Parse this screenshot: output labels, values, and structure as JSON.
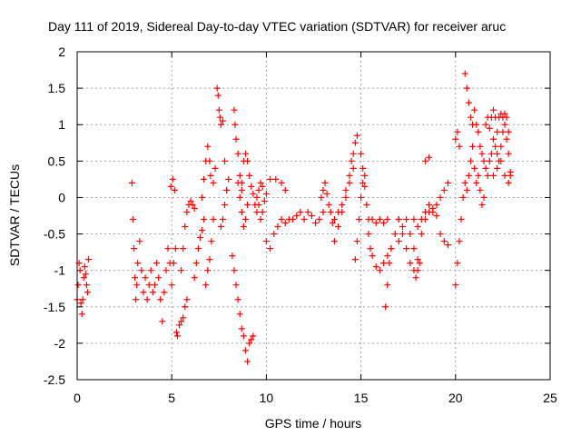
{
  "chart_data": {
    "type": "scatter",
    "title": "Day 111 of 2019, Sidereal Day-to-day VTEC variation (SDTVAR) for receiver aruc",
    "xlabel": "GPS time / hours",
    "ylabel": "SDTVAR / TECUs",
    "xlim": [
      0,
      25
    ],
    "ylim": [
      -2.5,
      2
    ],
    "xticks": [
      0,
      5,
      10,
      15,
      20,
      25
    ],
    "xtick_labels": [
      "0",
      "5",
      "10",
      "15",
      "20",
      "25"
    ],
    "yticks": [
      -2.5,
      -2,
      -1.5,
      -1,
      -0.5,
      0,
      0.5,
      1,
      1.5,
      2
    ],
    "ytick_labels": [
      "-2.5",
      "-2",
      "-1.5",
      "-1",
      "-0.5",
      "0",
      "0.5",
      "1",
      "1.5",
      "2"
    ],
    "grid": true,
    "marker": "+",
    "series": [
      {
        "name": "SDTVAR",
        "color": "#ff0000",
        "points": [
          [
            0.0,
            -1.4
          ],
          [
            0.05,
            -1.2
          ],
          [
            0.1,
            -0.9
          ],
          [
            0.15,
            -1.0
          ],
          [
            0.2,
            -1.45
          ],
          [
            0.25,
            -1.6
          ],
          [
            0.3,
            -1.4
          ],
          [
            0.35,
            -1.1
          ],
          [
            0.4,
            -0.95
          ],
          [
            0.45,
            -1.05
          ],
          [
            0.5,
            -1.2
          ],
          [
            0.55,
            -1.3
          ],
          [
            0.6,
            -0.85
          ],
          [
            2.9,
            0.2
          ],
          [
            2.95,
            -0.3
          ],
          [
            3.0,
            -0.7
          ],
          [
            3.05,
            -1.1
          ],
          [
            3.1,
            -1.4
          ],
          [
            3.15,
            -1.2
          ],
          [
            3.2,
            -0.9
          ],
          [
            3.3,
            -0.6
          ],
          [
            3.4,
            -1.0
          ],
          [
            3.5,
            -1.3
          ],
          [
            3.6,
            -1.1
          ],
          [
            3.7,
            -1.4
          ],
          [
            3.8,
            -1.2
          ],
          [
            3.9,
            -1.0
          ],
          [
            4.0,
            -1.3
          ],
          [
            4.1,
            -1.2
          ],
          [
            4.2,
            -0.9
          ],
          [
            4.3,
            -1.1
          ],
          [
            4.4,
            -1.4
          ],
          [
            4.5,
            -1.7
          ],
          [
            4.6,
            -1.3
          ],
          [
            4.7,
            -1.0
          ],
          [
            4.8,
            -0.7
          ],
          [
            4.9,
            -0.9
          ],
          [
            5.0,
            -1.2
          ],
          [
            5.1,
            -0.9
          ],
          [
            5.2,
            -0.7
          ],
          [
            4.95,
            0.15
          ],
          [
            5.05,
            0.25
          ],
          [
            5.15,
            0.1
          ],
          [
            5.25,
            -1.85
          ],
          [
            5.3,
            -1.9
          ],
          [
            5.4,
            -1.75
          ],
          [
            5.5,
            -1.7
          ],
          [
            5.6,
            -1.65
          ],
          [
            5.7,
            -1.5
          ],
          [
            5.8,
            -1.4
          ],
          [
            5.5,
            -1.0
          ],
          [
            5.6,
            -0.7
          ],
          [
            5.7,
            -0.4
          ],
          [
            5.8,
            -0.2
          ],
          [
            5.9,
            -0.1
          ],
          [
            6.0,
            -0.05
          ],
          [
            6.1,
            -0.1
          ],
          [
            6.2,
            -0.15
          ],
          [
            6.2,
            -1.1
          ],
          [
            6.3,
            -0.9
          ],
          [
            6.4,
            -0.7
          ],
          [
            6.5,
            -0.55
          ],
          [
            6.6,
            -0.45
          ],
          [
            6.7,
            -0.3
          ],
          [
            6.6,
            0.0
          ],
          [
            6.7,
            0.25
          ],
          [
            6.8,
            0.5
          ],
          [
            6.9,
            0.7
          ],
          [
            7.0,
            0.5
          ],
          [
            7.05,
            0.3
          ],
          [
            6.8,
            -1.2
          ],
          [
            6.9,
            -1.0
          ],
          [
            7.0,
            -0.85
          ],
          [
            7.1,
            -0.6
          ],
          [
            7.2,
            -0.3
          ],
          [
            7.2,
            0.2
          ],
          [
            7.3,
            0.4
          ],
          [
            7.4,
            1.5
          ],
          [
            7.45,
            1.4
          ],
          [
            7.5,
            1.2
          ],
          [
            7.55,
            1.1
          ],
          [
            7.6,
            1.0
          ],
          [
            7.7,
            1.05
          ],
          [
            7.8,
            0.5
          ],
          [
            7.9,
            0.1
          ],
          [
            7.6,
            -0.4
          ],
          [
            7.7,
            -0.3
          ],
          [
            7.8,
            -0.1
          ],
          [
            7.9,
            0.1
          ],
          [
            8.0,
            0.25
          ],
          [
            8.3,
            1.2
          ],
          [
            8.35,
            1.0
          ],
          [
            8.4,
            0.8
          ],
          [
            8.5,
            0.6
          ],
          [
            8.6,
            0.3
          ],
          [
            8.7,
            0.1
          ],
          [
            8.2,
            -0.8
          ],
          [
            8.3,
            -1.0
          ],
          [
            8.4,
            -1.2
          ],
          [
            8.5,
            -1.4
          ],
          [
            8.6,
            -1.6
          ],
          [
            8.7,
            -1.8
          ],
          [
            8.8,
            -1.9
          ],
          [
            8.9,
            -2.1
          ],
          [
            9.0,
            -2.25
          ],
          [
            9.1,
            -2.0
          ],
          [
            9.2,
            -1.95
          ],
          [
            9.3,
            -1.9
          ],
          [
            8.5,
            0.2
          ],
          [
            8.6,
            0.0
          ],
          [
            8.7,
            -0.2
          ],
          [
            8.8,
            -0.4
          ],
          [
            8.9,
            -0.3
          ],
          [
            9.0,
            -0.1
          ],
          [
            8.7,
            0.2
          ],
          [
            8.8,
            0.5
          ],
          [
            8.9,
            0.6
          ],
          [
            9.0,
            0.5
          ],
          [
            9.1,
            0.3
          ],
          [
            9.2,
            0.15
          ],
          [
            9.3,
            0.05
          ],
          [
            9.4,
            -0.1
          ],
          [
            9.5,
            -0.2
          ],
          [
            9.6,
            -0.1
          ],
          [
            9.7,
            -0.3
          ],
          [
            9.8,
            -0.2
          ],
          [
            9.9,
            -0.05
          ],
          [
            9.5,
            0.0
          ],
          [
            9.6,
            0.1
          ],
          [
            9.7,
            0.2
          ],
          [
            9.8,
            0.15
          ],
          [
            10.0,
            0.05
          ],
          [
            10.2,
            0.25
          ],
          [
            10.5,
            0.25
          ],
          [
            10.8,
            0.2
          ],
          [
            11.0,
            0.1
          ],
          [
            10.0,
            -0.6
          ],
          [
            10.2,
            -0.7
          ],
          [
            10.4,
            -0.5
          ],
          [
            10.6,
            -0.4
          ],
          [
            10.8,
            -0.3
          ],
          [
            11.0,
            -0.35
          ],
          [
            11.2,
            -0.3
          ],
          [
            11.4,
            -0.3
          ],
          [
            11.6,
            -0.25
          ],
          [
            11.8,
            -0.2
          ],
          [
            12.0,
            -0.3
          ],
          [
            12.2,
            -0.2
          ],
          [
            12.4,
            -0.25
          ],
          [
            12.6,
            -0.35
          ],
          [
            12.8,
            -0.3
          ],
          [
            13.0,
            -0.2
          ],
          [
            12.9,
            0.0
          ],
          [
            13.0,
            0.1
          ],
          [
            13.1,
            0.2
          ],
          [
            13.2,
            0.05
          ],
          [
            13.3,
            -0.1
          ],
          [
            13.4,
            -0.2
          ],
          [
            13.5,
            -0.35
          ],
          [
            13.6,
            -0.3
          ],
          [
            13.8,
            -0.2
          ],
          [
            14.0,
            -0.1
          ],
          [
            14.2,
            0.1
          ],
          [
            14.4,
            0.3
          ],
          [
            14.5,
            0.5
          ],
          [
            14.6,
            0.6
          ],
          [
            14.7,
            0.75
          ],
          [
            14.8,
            0.85
          ],
          [
            13.6,
            -0.6
          ],
          [
            13.8,
            -0.4
          ],
          [
            14.0,
            -0.2
          ],
          [
            14.2,
            0.0
          ],
          [
            14.4,
            0.2
          ],
          [
            14.6,
            0.4
          ],
          [
            14.7,
            -0.85
          ],
          [
            14.8,
            -0.6
          ],
          [
            14.9,
            -0.3
          ],
          [
            15.0,
            0.0
          ],
          [
            15.1,
            0.2
          ],
          [
            15.2,
            0.3
          ],
          [
            15.3,
            -0.1
          ],
          [
            15.4,
            -0.3
          ],
          [
            15.0,
            0.6
          ],
          [
            15.1,
            0.4
          ],
          [
            15.2,
            0.15
          ],
          [
            15.4,
            -0.5
          ],
          [
            15.5,
            -0.7
          ],
          [
            15.6,
            -0.8
          ],
          [
            15.8,
            -0.95
          ],
          [
            16.0,
            -1.0
          ],
          [
            16.2,
            -0.9
          ],
          [
            16.4,
            -0.8
          ],
          [
            16.6,
            -0.7
          ],
          [
            16.8,
            -0.5
          ],
          [
            17.0,
            -0.3
          ],
          [
            15.6,
            -0.3
          ],
          [
            15.8,
            -0.35
          ],
          [
            16.0,
            -0.3
          ],
          [
            16.2,
            -0.35
          ],
          [
            16.4,
            -0.3
          ],
          [
            16.3,
            -1.5
          ],
          [
            16.4,
            -1.2
          ],
          [
            16.5,
            -0.9
          ],
          [
            16.6,
            -0.7
          ],
          [
            16.8,
            -0.5
          ],
          [
            17.0,
            -0.3
          ],
          [
            17.2,
            -0.5
          ],
          [
            17.4,
            -0.7
          ],
          [
            17.6,
            -0.9
          ],
          [
            17.8,
            -1.0
          ],
          [
            17.9,
            -1.1
          ],
          [
            18.0,
            -1.0
          ],
          [
            18.1,
            -0.9
          ],
          [
            17.0,
            -0.6
          ],
          [
            17.2,
            -0.4
          ],
          [
            17.4,
            -0.3
          ],
          [
            17.6,
            -0.5
          ],
          [
            17.8,
            -0.7
          ],
          [
            18.0,
            -0.85
          ],
          [
            17.8,
            -0.3
          ],
          [
            18.0,
            -0.4
          ],
          [
            18.2,
            -0.3
          ],
          [
            18.4,
            -0.2
          ],
          [
            18.6,
            -0.1
          ],
          [
            18.8,
            -0.2
          ],
          [
            19.0,
            -0.1
          ],
          [
            19.2,
            0.0
          ],
          [
            19.4,
            0.1
          ],
          [
            19.6,
            0.2
          ],
          [
            18.2,
            -0.5
          ],
          [
            18.4,
            -0.3
          ],
          [
            18.6,
            -0.2
          ],
          [
            18.8,
            -0.15
          ],
          [
            19.0,
            -0.25
          ],
          [
            18.4,
            0.5
          ],
          [
            18.6,
            0.55
          ],
          [
            19.2,
            -0.5
          ],
          [
            19.4,
            -0.6
          ],
          [
            19.6,
            -0.65
          ],
          [
            20.0,
            -1.2
          ],
          [
            20.1,
            -0.9
          ],
          [
            20.2,
            -0.6
          ],
          [
            20.3,
            -0.3
          ],
          [
            20.4,
            0.0
          ],
          [
            20.5,
            0.2
          ],
          [
            20.6,
            0.1
          ],
          [
            20.0,
            0.8
          ],
          [
            20.1,
            0.9
          ],
          [
            20.2,
            0.7
          ],
          [
            20.5,
            1.7
          ],
          [
            20.6,
            1.5
          ],
          [
            20.7,
            1.3
          ],
          [
            20.8,
            1.1
          ],
          [
            20.9,
            1.0
          ],
          [
            21.0,
            1.2
          ],
          [
            21.1,
            1.0
          ],
          [
            21.2,
            0.9
          ],
          [
            21.3,
            0.7
          ],
          [
            21.4,
            0.6
          ],
          [
            21.5,
            0.5
          ],
          [
            21.6,
            0.4
          ],
          [
            21.7,
            0.3
          ],
          [
            21.8,
            0.5
          ],
          [
            21.9,
            0.6
          ],
          [
            22.0,
            0.8
          ],
          [
            22.1,
            0.7
          ],
          [
            22.2,
            0.6
          ],
          [
            22.3,
            0.5
          ],
          [
            22.4,
            0.7
          ],
          [
            22.5,
            0.9
          ],
          [
            22.6,
            1.0
          ],
          [
            22.7,
            0.8
          ],
          [
            22.8,
            0.6
          ],
          [
            22.9,
            0.3
          ],
          [
            20.7,
            0.3
          ],
          [
            20.8,
            0.5
          ],
          [
            20.9,
            0.7
          ],
          [
            21.0,
            0.4
          ],
          [
            21.1,
            0.2
          ],
          [
            21.2,
            0.3
          ],
          [
            21.3,
            0.1
          ],
          [
            21.4,
            -0.1
          ],
          [
            21.5,
            0.0
          ],
          [
            21.6,
            1.0
          ],
          [
            21.7,
            1.1
          ],
          [
            21.8,
            0.95
          ],
          [
            21.9,
            1.1
          ],
          [
            22.0,
            1.2
          ],
          [
            22.1,
            1.1
          ],
          [
            22.2,
            0.9
          ],
          [
            22.3,
            1.1
          ],
          [
            22.4,
            1.15
          ],
          [
            22.5,
            1.1
          ],
          [
            22.6,
            1.15
          ],
          [
            22.7,
            1.1
          ],
          [
            22.8,
            0.9
          ],
          [
            22.0,
            0.3
          ],
          [
            22.2,
            0.4
          ],
          [
            22.4,
            0.5
          ],
          [
            22.6,
            0.3
          ],
          [
            22.8,
            0.2
          ],
          [
            22.9,
            0.35
          ]
        ]
      }
    ]
  }
}
